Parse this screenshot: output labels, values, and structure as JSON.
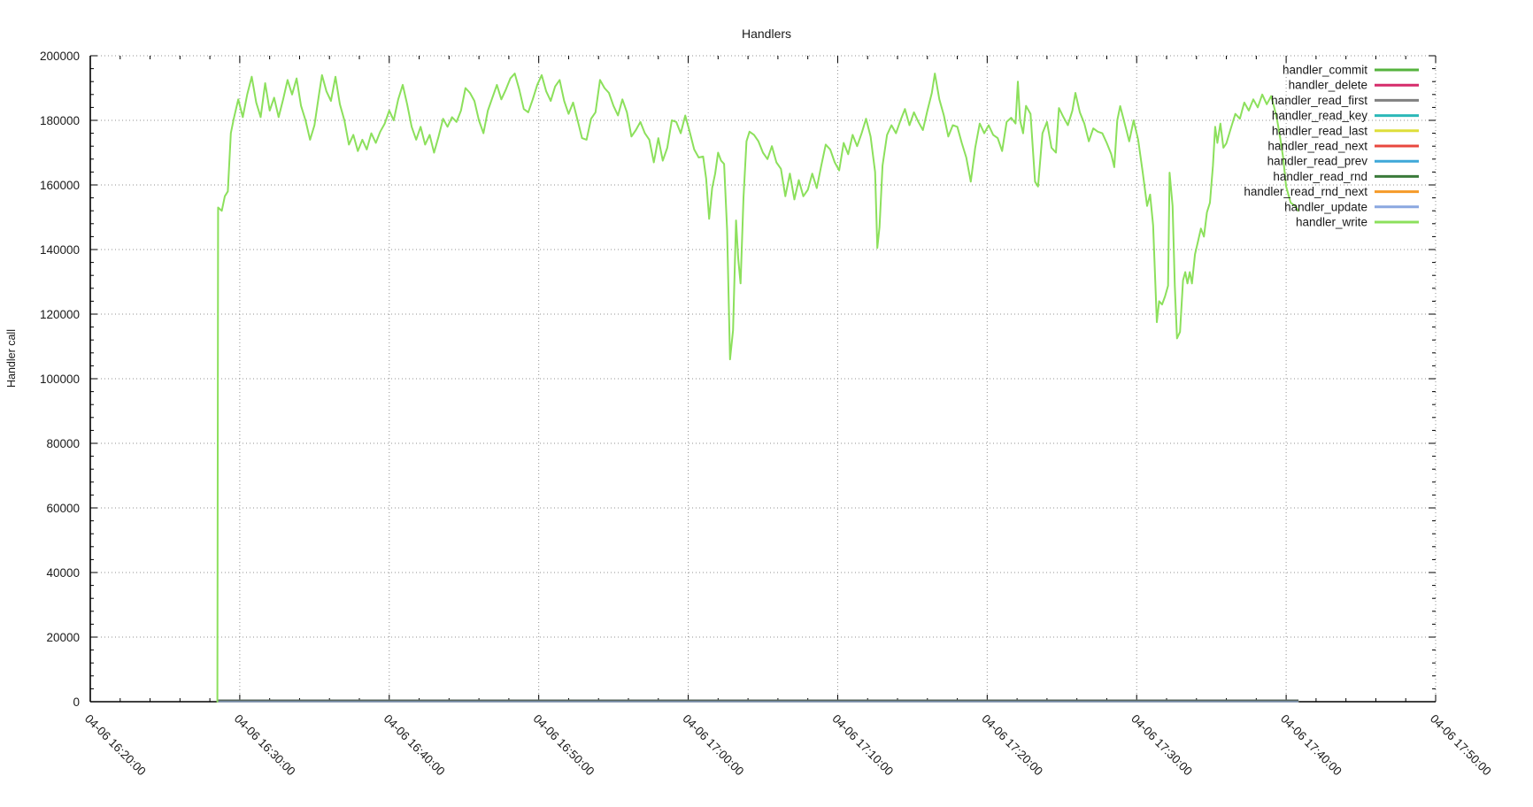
{
  "title": "Handlers",
  "ylabel": "Handler call",
  "colors": {
    "background": "#ffffff",
    "axis": "#000000",
    "grid": "#909090",
    "text": "#1a1a1a",
    "zero_overlap_blend": "#5a675f"
  },
  "chart_data": {
    "type": "line",
    "title": "Handlers",
    "xlabel": "",
    "ylabel": "Handler call",
    "grid": "dotted",
    "legend_position": "top-right-inside",
    "ylim": [
      0,
      200000
    ],
    "y_tick_step": 20000,
    "y_minor_step": 4000,
    "y_tick_labels": [
      "0",
      "20000",
      "40000",
      "60000",
      "80000",
      "100000",
      "120000",
      "140000",
      "160000",
      "180000",
      "200000"
    ],
    "x_unit": "minutes_after_04-06_16:20:00",
    "xlim_minutes": [
      0,
      90
    ],
    "x_tick_step_minutes": 10,
    "x_minor_step_minutes": 2,
    "x_tick_labels": [
      "04-06 16:20:00",
      "04-06 16:30:00",
      "04-06 16:40:00",
      "04-06 16:50:00",
      "04-06 17:00:00",
      "04-06 17:10:00",
      "04-06 17:20:00",
      "04-06 17:30:00",
      "04-06 17:40:00",
      "04-06 17:50:00"
    ],
    "data_start_min": 8.5,
    "data_end_min": 80.83,
    "series": [
      {
        "name": "handler_commit",
        "color": "#55b33e",
        "flat_value": 0
      },
      {
        "name": "handler_delete",
        "color": "#d62c6b",
        "flat_value": 0
      },
      {
        "name": "handler_read_first",
        "color": "#808080",
        "flat_value": 0
      },
      {
        "name": "handler_read_key",
        "color": "#2cb8b8",
        "flat_value": 0
      },
      {
        "name": "handler_read_last",
        "color": "#dede3a",
        "flat_value": 0
      },
      {
        "name": "handler_read_next",
        "color": "#e8483f",
        "flat_value": 0
      },
      {
        "name": "handler_read_prev",
        "color": "#3fa8d8",
        "flat_value": 0
      },
      {
        "name": "handler_read_rnd",
        "color": "#3a7a3a",
        "flat_value": 0
      },
      {
        "name": "handler_read_rnd_next",
        "color": "#f59a28",
        "flat_value": 0
      },
      {
        "name": "handler_update",
        "color": "#8aa7e0",
        "flat_value": 0
      },
      {
        "name": "handler_write",
        "color": "#8ce05c",
        "points": [
          [
            8.5,
            0
          ],
          [
            8.55,
            153000
          ],
          [
            8.8,
            152000
          ],
          [
            9.0,
            156500
          ],
          [
            9.2,
            158000
          ],
          [
            9.4,
            176000
          ],
          [
            9.6,
            180500
          ],
          [
            9.9,
            186500
          ],
          [
            10.2,
            181000
          ],
          [
            10.5,
            188000
          ],
          [
            10.8,
            193500
          ],
          [
            11.1,
            185500
          ],
          [
            11.4,
            181000
          ],
          [
            11.7,
            191500
          ],
          [
            12.0,
            183000
          ],
          [
            12.3,
            187000
          ],
          [
            12.6,
            181000
          ],
          [
            12.9,
            186500
          ],
          [
            13.2,
            192500
          ],
          [
            13.5,
            188000
          ],
          [
            13.8,
            193000
          ],
          [
            14.1,
            184500
          ],
          [
            14.4,
            180000
          ],
          [
            14.7,
            174000
          ],
          [
            15.0,
            178500
          ],
          [
            15.3,
            188000
          ],
          [
            15.5,
            194000
          ],
          [
            15.8,
            189000
          ],
          [
            16.1,
            186000
          ],
          [
            16.4,
            193500
          ],
          [
            16.7,
            185000
          ],
          [
            17.0,
            180000
          ],
          [
            17.3,
            172500
          ],
          [
            17.6,
            175500
          ],
          [
            17.9,
            170500
          ],
          [
            18.2,
            174000
          ],
          [
            18.5,
            171000
          ],
          [
            18.8,
            176000
          ],
          [
            19.1,
            173000
          ],
          [
            19.4,
            176500
          ],
          [
            19.7,
            179000
          ],
          [
            20.0,
            183000
          ],
          [
            20.3,
            180000
          ],
          [
            20.6,
            186500
          ],
          [
            20.9,
            191000
          ],
          [
            21.2,
            185000
          ],
          [
            21.5,
            178000
          ],
          [
            21.8,
            174000
          ],
          [
            22.1,
            178000
          ],
          [
            22.4,
            172500
          ],
          [
            22.7,
            175500
          ],
          [
            23.0,
            170000
          ],
          [
            23.3,
            175000
          ],
          [
            23.6,
            180500
          ],
          [
            23.9,
            178000
          ],
          [
            24.2,
            181000
          ],
          [
            24.5,
            179500
          ],
          [
            24.8,
            183000
          ],
          [
            25.1,
            190000
          ],
          [
            25.4,
            188500
          ],
          [
            25.7,
            186000
          ],
          [
            26.0,
            180000
          ],
          [
            26.3,
            176000
          ],
          [
            26.6,
            183000
          ],
          [
            26.9,
            187000
          ],
          [
            27.2,
            191000
          ],
          [
            27.5,
            186500
          ],
          [
            27.8,
            189500
          ],
          [
            28.1,
            193000
          ],
          [
            28.4,
            194500
          ],
          [
            28.7,
            189500
          ],
          [
            29.0,
            183500
          ],
          [
            29.3,
            182500
          ],
          [
            29.6,
            186500
          ],
          [
            29.9,
            191000
          ],
          [
            30.2,
            194000
          ],
          [
            30.5,
            189000
          ],
          [
            30.8,
            186000
          ],
          [
            31.1,
            190500
          ],
          [
            31.4,
            192500
          ],
          [
            31.7,
            186000
          ],
          [
            32.0,
            182000
          ],
          [
            32.3,
            185500
          ],
          [
            32.6,
            180000
          ],
          [
            32.9,
            174500
          ],
          [
            33.2,
            174000
          ],
          [
            33.5,
            180500
          ],
          [
            33.8,
            182500
          ],
          [
            34.1,
            192500
          ],
          [
            34.4,
            190000
          ],
          [
            34.7,
            188500
          ],
          [
            35.0,
            184500
          ],
          [
            35.3,
            181500
          ],
          [
            35.6,
            186500
          ],
          [
            35.9,
            182500
          ],
          [
            36.2,
            175000
          ],
          [
            36.5,
            177000
          ],
          [
            36.8,
            179500
          ],
          [
            37.1,
            176000
          ],
          [
            37.4,
            174000
          ],
          [
            37.7,
            167000
          ],
          [
            38.0,
            174500
          ],
          [
            38.3,
            167500
          ],
          [
            38.6,
            171500
          ],
          [
            38.9,
            180000
          ],
          [
            39.2,
            179500
          ],
          [
            39.5,
            176000
          ],
          [
            39.8,
            181500
          ],
          [
            40.1,
            176500
          ],
          [
            40.4,
            171000
          ],
          [
            40.7,
            168500
          ],
          [
            41.0,
            168800
          ],
          [
            41.2,
            162000
          ],
          [
            41.4,
            149500
          ],
          [
            41.6,
            159000
          ],
          [
            41.8,
            163500
          ],
          [
            42.0,
            170000
          ],
          [
            42.2,
            167500
          ],
          [
            42.4,
            166500
          ],
          [
            42.6,
            146000
          ],
          [
            42.8,
            106000
          ],
          [
            43.0,
            115000
          ],
          [
            43.2,
            149000
          ],
          [
            43.35,
            137000
          ],
          [
            43.5,
            129500
          ],
          [
            43.7,
            156000
          ],
          [
            43.9,
            173500
          ],
          [
            44.1,
            176500
          ],
          [
            44.4,
            175500
          ],
          [
            44.7,
            173500
          ],
          [
            45.0,
            170000
          ],
          [
            45.3,
            168000
          ],
          [
            45.6,
            172000
          ],
          [
            45.9,
            167000
          ],
          [
            46.2,
            165000
          ],
          [
            46.5,
            156500
          ],
          [
            46.8,
            163500
          ],
          [
            47.1,
            155500
          ],
          [
            47.4,
            161500
          ],
          [
            47.7,
            156500
          ],
          [
            48.0,
            158500
          ],
          [
            48.3,
            163500
          ],
          [
            48.6,
            159000
          ],
          [
            48.9,
            166000
          ],
          [
            49.2,
            172500
          ],
          [
            49.5,
            171000
          ],
          [
            49.8,
            167000
          ],
          [
            50.1,
            164500
          ],
          [
            50.4,
            173000
          ],
          [
            50.7,
            169500
          ],
          [
            51.0,
            175500
          ],
          [
            51.3,
            172000
          ],
          [
            51.6,
            176000
          ],
          [
            51.9,
            180500
          ],
          [
            52.2,
            175000
          ],
          [
            52.5,
            164000
          ],
          [
            52.65,
            140500
          ],
          [
            52.8,
            147000
          ],
          [
            53.0,
            166000
          ],
          [
            53.3,
            175500
          ],
          [
            53.6,
            178500
          ],
          [
            53.9,
            176000
          ],
          [
            54.2,
            180000
          ],
          [
            54.5,
            183500
          ],
          [
            54.8,
            178500
          ],
          [
            55.1,
            182500
          ],
          [
            55.4,
            179500
          ],
          [
            55.7,
            177000
          ],
          [
            56.0,
            183000
          ],
          [
            56.3,
            188500
          ],
          [
            56.5,
            194500
          ],
          [
            56.8,
            186500
          ],
          [
            57.1,
            181500
          ],
          [
            57.4,
            175000
          ],
          [
            57.7,
            178500
          ],
          [
            58.0,
            178000
          ],
          [
            58.3,
            173000
          ],
          [
            58.6,
            168500
          ],
          [
            58.9,
            161000
          ],
          [
            59.2,
            171500
          ],
          [
            59.5,
            179000
          ],
          [
            59.8,
            176000
          ],
          [
            60.1,
            178500
          ],
          [
            60.4,
            175500
          ],
          [
            60.7,
            174500
          ],
          [
            61.0,
            170500
          ],
          [
            61.3,
            179500
          ],
          [
            61.6,
            180800
          ],
          [
            61.9,
            179000
          ],
          [
            62.05,
            192000
          ],
          [
            62.2,
            180000
          ],
          [
            62.4,
            176000
          ],
          [
            62.6,
            184500
          ],
          [
            62.9,
            182000
          ],
          [
            63.2,
            161000
          ],
          [
            63.4,
            159500
          ],
          [
            63.7,
            176000
          ],
          [
            64.0,
            179500
          ],
          [
            64.3,
            171500
          ],
          [
            64.6,
            170000
          ],
          [
            64.8,
            183800
          ],
          [
            65.1,
            181000
          ],
          [
            65.4,
            178500
          ],
          [
            65.7,
            183000
          ],
          [
            65.9,
            188500
          ],
          [
            66.2,
            182500
          ],
          [
            66.5,
            179000
          ],
          [
            66.8,
            173500
          ],
          [
            67.1,
            177500
          ],
          [
            67.4,
            176500
          ],
          [
            67.7,
            176000
          ],
          [
            68.0,
            173000
          ],
          [
            68.3,
            169500
          ],
          [
            68.5,
            165500
          ],
          [
            68.7,
            180000
          ],
          [
            68.9,
            184400
          ],
          [
            69.2,
            179000
          ],
          [
            69.5,
            173500
          ],
          [
            69.8,
            180000
          ],
          [
            70.1,
            174000
          ],
          [
            70.4,
            164000
          ],
          [
            70.7,
            153500
          ],
          [
            70.9,
            157000
          ],
          [
            71.1,
            147500
          ],
          [
            71.35,
            117500
          ],
          [
            71.5,
            124000
          ],
          [
            71.7,
            123000
          ],
          [
            71.9,
            125500
          ],
          [
            72.1,
            128800
          ],
          [
            72.2,
            163800
          ],
          [
            72.4,
            153500
          ],
          [
            72.55,
            128800
          ],
          [
            72.7,
            112500
          ],
          [
            72.9,
            114500
          ],
          [
            73.1,
            130500
          ],
          [
            73.25,
            133000
          ],
          [
            73.4,
            129500
          ],
          [
            73.55,
            133000
          ],
          [
            73.7,
            129500
          ],
          [
            73.9,
            138500
          ],
          [
            74.1,
            142500
          ],
          [
            74.3,
            146500
          ],
          [
            74.5,
            144000
          ],
          [
            74.7,
            151500
          ],
          [
            74.9,
            154500
          ],
          [
            75.1,
            166000
          ],
          [
            75.25,
            178000
          ],
          [
            75.4,
            173000
          ],
          [
            75.6,
            179000
          ],
          [
            75.8,
            171500
          ],
          [
            76.0,
            172900
          ],
          [
            76.3,
            177500
          ],
          [
            76.6,
            182000
          ],
          [
            76.9,
            180500
          ],
          [
            77.2,
            185500
          ],
          [
            77.5,
            183000
          ],
          [
            77.8,
            186500
          ],
          [
            78.1,
            184000
          ],
          [
            78.4,
            188000
          ],
          [
            78.7,
            185000
          ],
          [
            79.0,
            187500
          ],
          [
            79.2,
            184000
          ],
          [
            79.4,
            180000
          ],
          [
            79.6,
            174500
          ],
          [
            79.8,
            168500
          ],
          [
            80.0,
            159500
          ],
          [
            80.3,
            154500
          ],
          [
            80.6,
            153500
          ],
          [
            80.83,
            152000
          ]
        ]
      }
    ]
  }
}
